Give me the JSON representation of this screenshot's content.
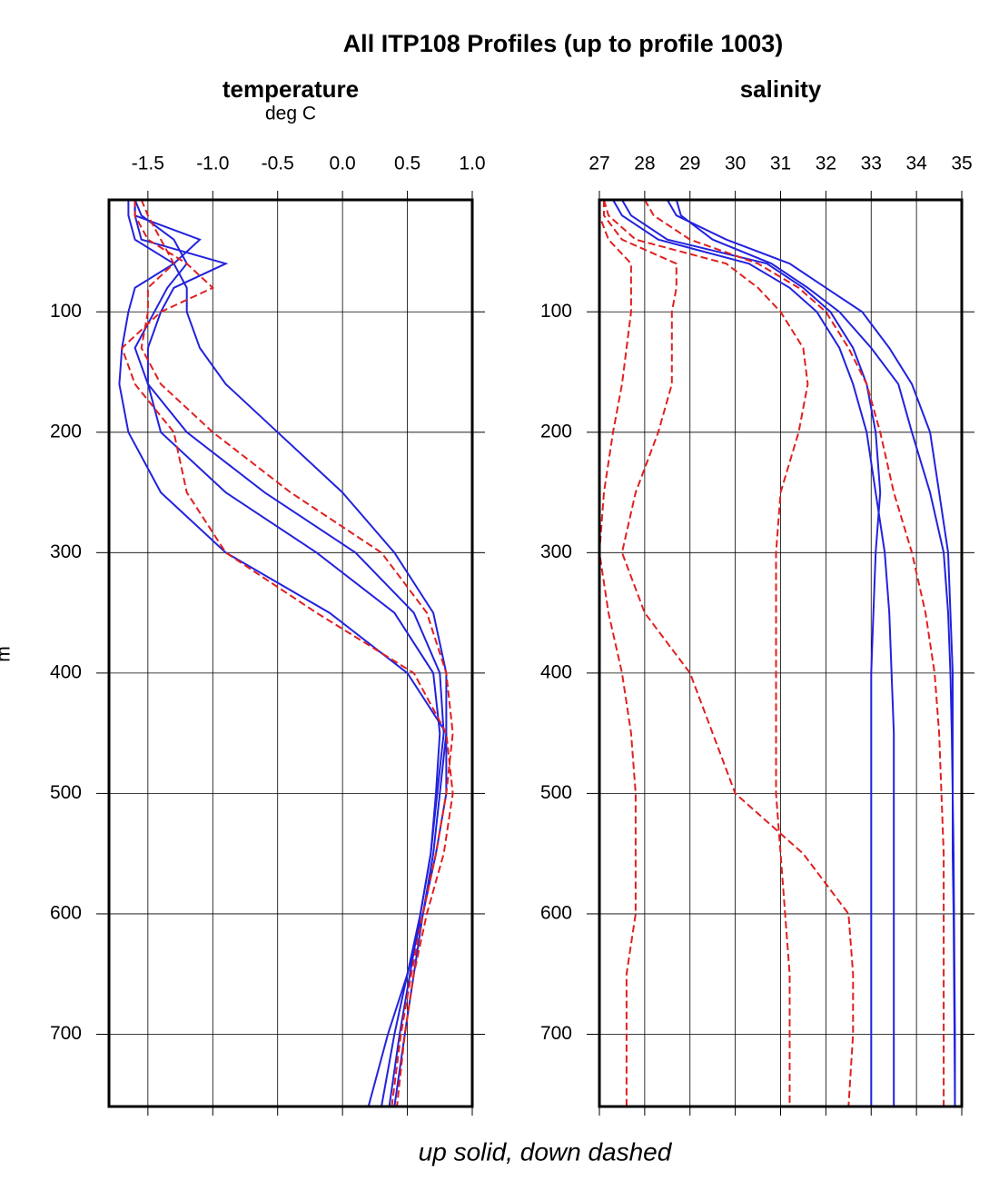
{
  "title": "All ITP108 Profiles (up to profile 1003)",
  "caption": "up solid, down dashed",
  "chart_data": [
    {
      "type": "line",
      "title": "temperature",
      "subtitle": "deg C",
      "ylabel": "m",
      "xlim": [
        -1.8,
        1.0
      ],
      "xticks": [
        {
          "value": -1.5,
          "label": "-1.5"
        },
        {
          "value": -1.0,
          "label": "-1.0"
        },
        {
          "value": -0.5,
          "label": "-0.5"
        },
        {
          "value": 0.0,
          "label": "0.0"
        },
        {
          "value": 0.5,
          "label": "0.5"
        },
        {
          "value": 1.0,
          "label": "1.0"
        }
      ],
      "ylim": [
        7,
        760
      ],
      "y_inverted": true,
      "yticks": [
        100,
        200,
        300,
        400,
        500,
        600,
        700
      ],
      "grid": true,
      "y": [
        7,
        20,
        40,
        60,
        80,
        100,
        130,
        160,
        200,
        250,
        300,
        350,
        400,
        450,
        500,
        550,
        600,
        650,
        700,
        760
      ],
      "series": [
        {
          "color": "#2222dd",
          "style": "solid",
          "values": [
            -1.6,
            -1.6,
            -1.55,
            -0.9,
            -1.3,
            -1.4,
            -1.5,
            -1.5,
            -1.4,
            -0.9,
            -0.2,
            0.4,
            0.7,
            0.75,
            0.72,
            0.68,
            0.6,
            0.5,
            0.4,
            0.3
          ]
        },
        {
          "color": "#2222dd",
          "style": "solid",
          "values": [
            -1.6,
            -1.6,
            -1.1,
            -1.3,
            -1.2,
            -1.2,
            -1.1,
            -0.9,
            -0.5,
            0.0,
            0.4,
            0.7,
            0.8,
            0.8,
            0.75,
            0.7,
            0.62,
            0.55,
            0.48,
            0.4
          ]
        },
        {
          "color": "#2222dd",
          "style": "solid",
          "values": [
            -1.6,
            -1.55,
            -1.3,
            -1.2,
            -1.35,
            -1.45,
            -1.6,
            -1.5,
            -1.2,
            -0.6,
            0.1,
            0.55,
            0.75,
            0.78,
            0.73,
            0.68,
            0.6,
            0.52,
            0.44,
            0.36
          ]
        },
        {
          "color": "#2222dd",
          "style": "solid",
          "values": [
            -1.65,
            -1.65,
            -1.6,
            -1.3,
            -1.6,
            -1.65,
            -1.7,
            -1.72,
            -1.65,
            -1.4,
            -0.9,
            -0.1,
            0.5,
            0.8,
            0.8,
            0.72,
            0.62,
            0.5,
            0.35,
            0.2
          ]
        },
        {
          "color": "#e02020",
          "style": "dashed",
          "values": [
            -1.6,
            -1.6,
            -1.5,
            -1.2,
            -1.0,
            -1.4,
            -1.7,
            -1.6,
            -1.3,
            -1.2,
            -0.9,
            -0.2,
            0.55,
            0.8,
            0.85,
            0.78,
            0.65,
            0.55,
            0.48,
            0.42
          ]
        },
        {
          "color": "#e02020",
          "style": "dashed",
          "values": [
            -1.55,
            -1.5,
            -1.4,
            -1.3,
            -1.5,
            -1.5,
            -1.55,
            -1.4,
            -1.0,
            -0.4,
            0.3,
            0.65,
            0.8,
            0.85,
            0.8,
            0.72,
            0.62,
            0.53,
            0.45,
            0.38
          ]
        }
      ]
    },
    {
      "type": "line",
      "title": "salinity",
      "xlim": [
        27,
        35
      ],
      "xticks": [
        27,
        28,
        29,
        30,
        31,
        32,
        33,
        34,
        35
      ],
      "ylim": [
        7,
        760
      ],
      "y_inverted": true,
      "yticks": [
        100,
        200,
        300,
        400,
        500,
        600,
        700
      ],
      "grid": true,
      "y": [
        7,
        20,
        40,
        60,
        80,
        100,
        130,
        160,
        200,
        250,
        300,
        350,
        400,
        450,
        500,
        550,
        600,
        650,
        700,
        760
      ],
      "series": [
        {
          "color": "#2222dd",
          "style": "solid",
          "values": [
            28.7,
            28.8,
            29.5,
            30.8,
            31.6,
            32.3,
            33.0,
            33.6,
            33.9,
            34.3,
            34.6,
            34.7,
            34.75,
            34.78,
            34.8,
            34.8,
            34.82,
            34.83,
            34.84,
            34.85
          ]
        },
        {
          "color": "#2222dd",
          "style": "solid",
          "values": [
            27.3,
            27.5,
            28.3,
            30.3,
            31.2,
            31.8,
            32.3,
            32.6,
            32.9,
            33.1,
            33.3,
            33.4,
            33.45,
            33.5,
            33.5,
            33.5,
            33.5,
            33.5,
            33.5,
            33.5
          ]
        },
        {
          "color": "#2222dd",
          "style": "solid",
          "values": [
            28.5,
            28.7,
            29.8,
            31.2,
            32.0,
            32.8,
            33.4,
            33.9,
            34.3,
            34.5,
            34.7,
            34.75,
            34.8,
            34.8,
            34.8,
            34.82,
            34.83,
            34.84,
            34.85,
            34.85
          ]
        },
        {
          "color": "#2222dd",
          "style": "solid",
          "values": [
            27.5,
            27.7,
            28.5,
            30.7,
            31.5,
            32.1,
            32.6,
            32.9,
            33.1,
            33.2,
            33.1,
            33.05,
            33.0,
            33.0,
            33.0,
            33.0,
            33.0,
            33.0,
            33.0,
            33.0
          ]
        },
        {
          "color": "#e02020",
          "style": "dashed",
          "values": [
            27.0,
            27.0,
            27.2,
            27.7,
            27.7,
            27.7,
            27.6,
            27.5,
            27.3,
            27.1,
            27.0,
            27.2,
            27.5,
            27.7,
            27.8,
            27.8,
            27.8,
            27.6,
            27.6,
            27.6
          ]
        },
        {
          "color": "#e02020",
          "style": "dashed",
          "values": [
            27.1,
            27.1,
            27.5,
            28.7,
            28.7,
            28.6,
            28.6,
            28.6,
            28.3,
            27.8,
            27.5,
            28.0,
            29.0,
            29.5,
            30.0,
            31.5,
            32.5,
            32.6,
            32.6,
            32.5
          ]
        },
        {
          "color": "#e02020",
          "style": "dashed",
          "values": [
            27.1,
            27.2,
            27.8,
            29.8,
            30.5,
            31.0,
            31.5,
            31.6,
            31.4,
            31.0,
            30.9,
            30.9,
            30.9,
            30.9,
            30.9,
            31.0,
            31.1,
            31.2,
            31.2,
            31.2
          ]
        },
        {
          "color": "#e02020",
          "style": "dashed",
          "values": [
            28.0,
            28.2,
            29.0,
            30.5,
            31.4,
            32.0,
            32.5,
            32.9,
            33.2,
            33.5,
            33.9,
            34.2,
            34.4,
            34.5,
            34.55,
            34.6,
            34.6,
            34.6,
            34.6,
            34.6
          ]
        }
      ]
    }
  ]
}
